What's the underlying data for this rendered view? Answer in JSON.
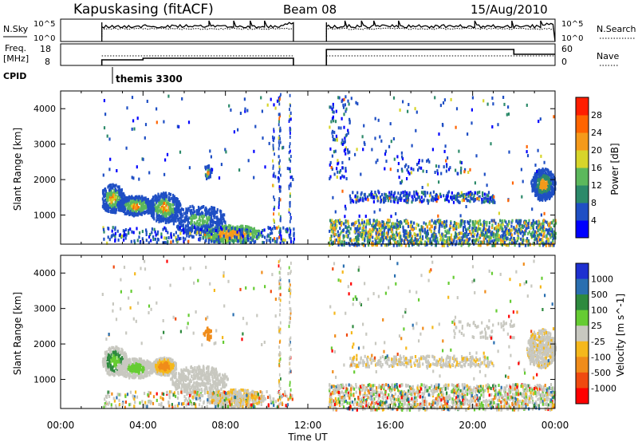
{
  "header": {
    "station": "Kapuskasing (fitACF)",
    "beam": "Beam 08",
    "date": "15/Aug/2010"
  },
  "nsky_panel": {
    "left_label": "N.Sky",
    "right_label": "N.Search",
    "left_ticks": [
      "10^5",
      "10^0"
    ],
    "right_ticks": [
      "10^5",
      "10^0"
    ]
  },
  "freq_panel": {
    "left_label_1": "Freq.",
    "left_label_2": "[MHz]",
    "right_label": "Nave",
    "left_ticks": [
      "18",
      "8"
    ],
    "right_ticks": [
      "60",
      "0"
    ]
  },
  "cpid": {
    "label": "CPID",
    "program": "themis 3300"
  },
  "colors": {
    "scatter_blue": "#1d3fd6",
    "ground_gray": "#c8c8c0",
    "frame": "#000000"
  },
  "chart_data": [
    {
      "type": "heatmap",
      "name": "power",
      "ylabel": "Slant Range [km]",
      "colorbar_label": "Power [dB]",
      "xlim": [
        "00:00",
        "24:00"
      ],
      "ylim": [
        180,
        4500
      ],
      "y_ticks": [
        1000,
        2000,
        3000,
        4000
      ],
      "colorbar_ticks": [
        "4",
        "8",
        "12",
        "16",
        "20",
        "24",
        "28"
      ],
      "colorbar_colors": [
        "#0000ff",
        "#1f4fc4",
        "#2c8a6a",
        "#5cb85c",
        "#d7d52a",
        "#f59a1a",
        "#ff6400",
        "#ff1e00"
      ],
      "data_gaps_hours": [
        [
          11.3,
          12.9
        ]
      ]
    },
    {
      "type": "heatmap",
      "name": "velocity",
      "ylabel": "Slant Range [km]",
      "colorbar_label": "Velocity [m s^-1]",
      "xlabel": "Time UT",
      "xlim": [
        "00:00",
        "24:00"
      ],
      "ylim": [
        180,
        4500
      ],
      "y_ticks": [
        1000,
        2000,
        3000,
        4000
      ],
      "x_ticks": [
        "00:00",
        "04:00",
        "08:00",
        "12:00",
        "16:00",
        "20:00",
        "00:00"
      ],
      "colorbar_ticks": [
        "1000",
        "500",
        "100",
        "25",
        "-25",
        "-100",
        "-500",
        "-1000"
      ],
      "colorbar_colors": [
        "#1e30d0",
        "#2a6fb0",
        "#2e8a3e",
        "#66cc33",
        "#c8c8c0",
        "#f5b81c",
        "#f08c1a",
        "#f04a10",
        "#ff0000"
      ],
      "data_gaps_hours": [
        [
          11.3,
          12.9
        ]
      ]
    }
  ]
}
